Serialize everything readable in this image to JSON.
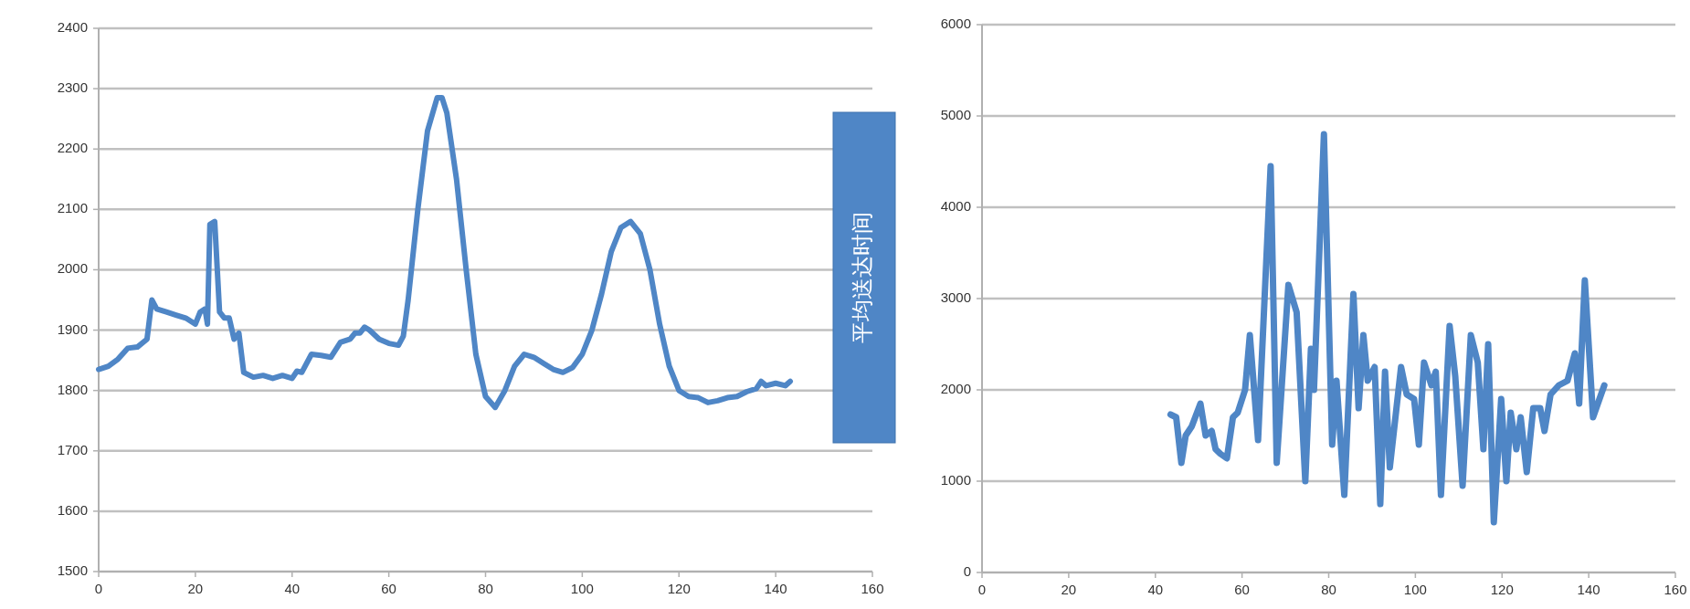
{
  "chart_data": [
    {
      "type": "line",
      "xlim": [
        0,
        160
      ],
      "xticks": [
        0,
        20,
        40,
        60,
        80,
        100,
        120,
        140,
        160
      ],
      "ylim": [
        1500,
        2400
      ],
      "yticks": [
        1500,
        1600,
        1700,
        1800,
        1900,
        2000,
        2100,
        2200,
        2300,
        2400
      ],
      "grid": "y",
      "x": [
        0,
        2,
        4,
        6,
        8,
        10,
        11,
        12,
        14,
        16,
        18,
        20,
        21,
        22,
        22.5,
        23,
        24,
        25,
        26,
        27,
        28,
        29,
        30,
        32,
        34,
        36,
        38,
        40,
        41,
        42,
        44,
        46,
        48,
        50,
        52,
        53,
        54,
        55,
        56,
        58,
        60,
        62,
        63,
        64,
        66,
        68,
        70,
        71,
        72,
        74,
        76,
        78,
        80,
        82,
        84,
        86,
        88,
        90,
        92,
        94,
        96,
        98,
        100,
        102,
        104,
        106,
        108,
        110,
        112,
        114,
        116,
        118,
        120,
        122,
        124,
        126,
        128,
        130,
        132,
        134,
        136,
        137,
        138,
        140,
        142,
        143
      ],
      "series": [
        {
          "color": "#4f86c6",
          "values": [
            1835,
            1840,
            1852,
            1870,
            1872,
            1885,
            1950,
            1935,
            1930,
            1925,
            1920,
            1910,
            1930,
            1935,
            1910,
            2075,
            2080,
            1930,
            1920,
            1920,
            1885,
            1895,
            1830,
            1822,
            1825,
            1820,
            1825,
            1820,
            1832,
            1830,
            1860,
            1858,
            1855,
            1880,
            1885,
            1895,
            1895,
            1905,
            1900,
            1885,
            1878,
            1875,
            1890,
            1950,
            2100,
            2230,
            2285,
            2285,
            2260,
            2150,
            2000,
            1860,
            1790,
            1772,
            1800,
            1840,
            1860,
            1855,
            1845,
            1835,
            1830,
            1838,
            1860,
            1900,
            1960,
            2030,
            2070,
            2080,
            2060,
            2000,
            1910,
            1840,
            1800,
            1790,
            1788,
            1780,
            1783,
            1788,
            1790,
            1798,
            1803,
            1815,
            1808,
            1812,
            1808,
            1815
          ]
        }
      ]
    },
    {
      "type": "line",
      "ylabel": "平均送达时间",
      "xlim": [
        0,
        160
      ],
      "xticks": [
        0,
        20,
        40,
        60,
        80,
        100,
        120,
        140,
        160
      ],
      "ylim": [
        0,
        6000
      ],
      "yticks": [
        0,
        1000,
        2000,
        3000,
        4000,
        5000,
        6000
      ],
      "grid": "y",
      "x": [
        43.5,
        44.8,
        46,
        47,
        48.4,
        50.4,
        51.6,
        53,
        53.9,
        55,
        56.5,
        57.9,
        59,
        60.7,
        61.8,
        63.7,
        66.6,
        68,
        70.7,
        72.6,
        74.6,
        75.9,
        76.6,
        78.9,
        80.8,
        81.8,
        83.6,
        85.7,
        86.9,
        88,
        89,
        90.6,
        91.9,
        93,
        94.1,
        96.7,
        98,
        99.7,
        100.8,
        102,
        103.7,
        104.7,
        105.9,
        107.9,
        109.2,
        110.9,
        112.8,
        114.4,
        115.7,
        116.8,
        118.1,
        119.8,
        121,
        122,
        123.3,
        124.3,
        125.7,
        127.2,
        128.8,
        129.8,
        131.2,
        133.1,
        135.1,
        136.8,
        137.8,
        139.1,
        141,
        143.6
      ],
      "series": [
        {
          "color": "#4f86c6",
          "values": [
            1730,
            1700,
            1200,
            1500,
            1600,
            1850,
            1500,
            1550,
            1350,
            1300,
            1250,
            1700,
            1750,
            2000,
            2600,
            1450,
            4450,
            1200,
            3150,
            2850,
            1000,
            2450,
            2000,
            4800,
            1400,
            2100,
            850,
            3050,
            1800,
            2600,
            2100,
            2250,
            750,
            2200,
            1150,
            2250,
            1950,
            1900,
            1400,
            2300,
            2050,
            2200,
            850,
            2700,
            2150,
            950,
            2600,
            2300,
            1350,
            2500,
            550,
            1900,
            1000,
            1750,
            1350,
            1700,
            1100,
            1800,
            1800,
            1550,
            1950,
            2050,
            2100,
            2400,
            1850,
            3200,
            1700,
            2050
          ]
        }
      ]
    }
  ]
}
